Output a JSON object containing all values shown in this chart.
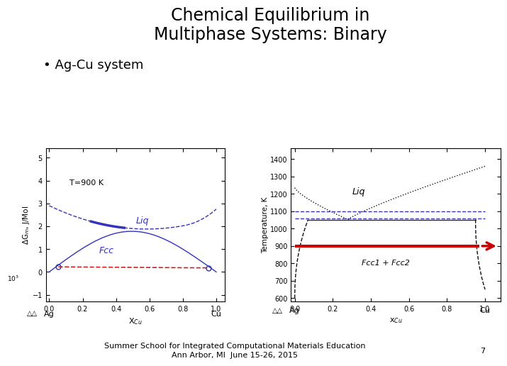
{
  "title_line1": "Chemical Equilibrium in",
  "title_line2": "Multiphase Systems: Binary",
  "bullet": "Ag-Cu system",
  "footer_line1": "Summer School for Integrated Computational Materials Education",
  "footer_line2": "Ann Arbor, MI  June 15-26, 2015",
  "page_number": "7",
  "bg_color": "#ffffff",
  "title_fontsize": 17,
  "bullet_fontsize": 13,
  "footer_fontsize": 8,
  "left_plot": {
    "xlabel": "X$_{Cu}$",
    "ylabel": "ΔG$_m$, J/Mol",
    "annotation": "T=900 K",
    "label_liq": "Liq",
    "label_fcc": "Fcc",
    "yticks": [
      -1,
      0,
      1,
      2,
      3,
      4,
      5
    ],
    "xticks": [
      0,
      0.2,
      0.4,
      0.6,
      0.8,
      1.0
    ],
    "xlim": [
      -0.02,
      1.05
    ],
    "ylim": [
      -1.3,
      5.4
    ],
    "x_label_left": "Ag",
    "x_label_right": "Cu",
    "extra_left_label": "10$^3$",
    "liq_color": "#3333bb",
    "fcc_color": "#3333bb",
    "tang_color": "#cc2222"
  },
  "right_plot": {
    "xlabel": "x$_{Cu}$",
    "ylabel": "Temperature, K",
    "label_liq": "Liq",
    "label_fcc2": "Fcc1 + Fcc2",
    "yticks": [
      600,
      700,
      800,
      900,
      1000,
      1100,
      1200,
      1300,
      1400
    ],
    "xticks": [
      0,
      0.2,
      0.4,
      0.6,
      0.8,
      1.0
    ],
    "xlim": [
      -0.02,
      1.08
    ],
    "ylim": [
      580,
      1460
    ],
    "x_label_left": "Ag",
    "x_label_right": "Cu",
    "T900_line_color": "#cc0000",
    "dashed_line_color": "#3333bb",
    "dashed_T1": 1100,
    "dashed_T2": 1060,
    "T900": 900,
    "arrow_color": "#cc0000",
    "curve_color": "#111111"
  }
}
